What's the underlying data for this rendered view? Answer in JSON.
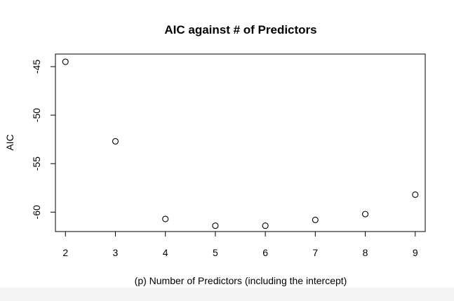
{
  "chart_data": {
    "type": "scatter",
    "title": "AIC against # of Predictors",
    "xlabel": "(p) Number of Predictors (including the intercept)",
    "ylabel": "AIC",
    "x": [
      2,
      3,
      4,
      5,
      6,
      7,
      8,
      9
    ],
    "y": [
      -44.5,
      -52.7,
      -60.7,
      -61.4,
      -61.4,
      -60.8,
      -60.2,
      -58.2
    ],
    "xlim": [
      1.8,
      9.2
    ],
    "ylim": [
      -62,
      -43.7
    ],
    "xticks": [
      "2",
      "3",
      "4",
      "5",
      "6",
      "7",
      "8",
      "9"
    ],
    "yticks": [
      "-45",
      "-50",
      "-55",
      "-60"
    ],
    "ytick_values": [
      -45,
      -50,
      -55,
      -60
    ],
    "grid": false,
    "marker": "open-circle",
    "marker_color": "#000000"
  }
}
